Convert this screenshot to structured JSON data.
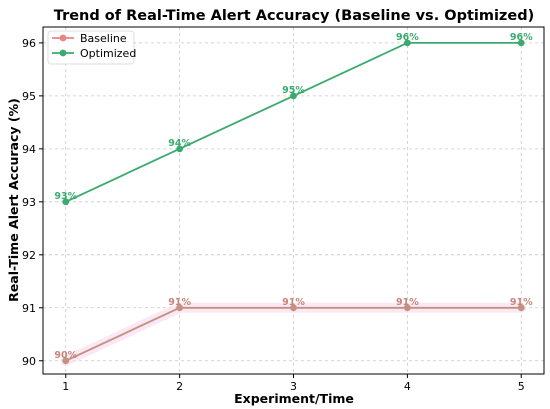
{
  "chart_data": {
    "type": "line",
    "title": "Trend of Real-Time Alert Accuracy (Baseline vs. Optimized)",
    "xlabel": "Experiment/Time",
    "ylabel": "Real-Time Alert Accuracy (%)",
    "x": [
      1,
      2,
      3,
      4,
      5
    ],
    "xticks": [
      "1",
      "2",
      "3",
      "4",
      "5"
    ],
    "xlim": [
      0.8,
      5.2
    ],
    "ylim": [
      89.75,
      96.3
    ],
    "yticks": [
      "90",
      "91",
      "92",
      "93",
      "94",
      "95",
      "96"
    ],
    "grid": true,
    "legend_position": "top-left",
    "series": [
      {
        "name": "Baseline",
        "values": [
          90,
          91,
          91,
          91,
          91
        ],
        "labels": [
          "90%",
          "91%",
          "91%",
          "91%",
          "91%"
        ],
        "color": "#e88582",
        "label_color": "#c9847a",
        "line_color": "#c49080"
      },
      {
        "name": "Optimized",
        "values": [
          93,
          94,
          95,
          96,
          96
        ],
        "labels": [
          "93%",
          "94%",
          "95%",
          "96%",
          "96%"
        ],
        "color": "#3aaa6e",
        "label_color": "#3aaa6e",
        "line_color": "#3aaa6e"
      }
    ]
  }
}
